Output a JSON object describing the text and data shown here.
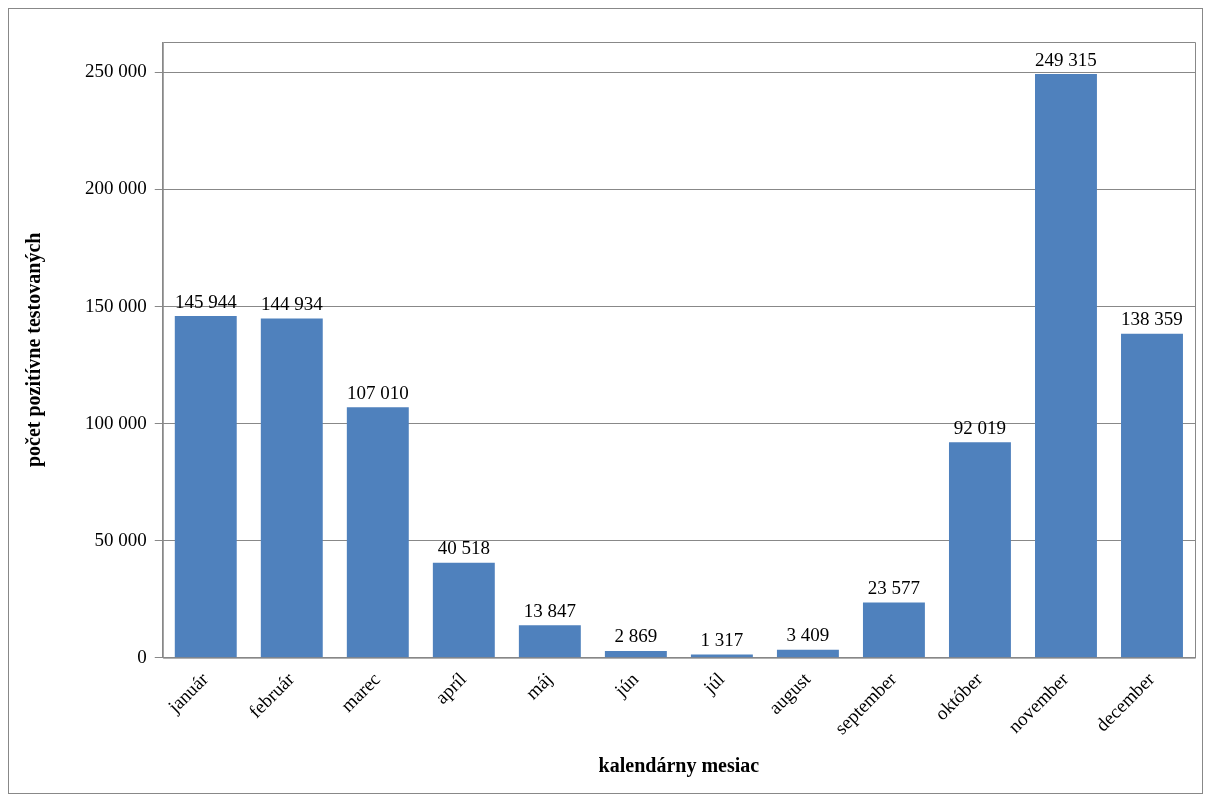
{
  "chart_data": {
    "type": "bar",
    "categories": [
      "január",
      "február",
      "marec",
      "apríl",
      "máj",
      "jún",
      "júl",
      "august",
      "september",
      "október",
      "november",
      "december"
    ],
    "values": [
      145944,
      144934,
      107010,
      40518,
      13847,
      2869,
      1317,
      3409,
      23577,
      92019,
      249315,
      138359
    ],
    "value_labels": [
      "145 944",
      "144 934",
      "107 010",
      "40 518",
      "13 847",
      "2 869",
      "1 317",
      "3 409",
      "23 577",
      "92 019",
      "249 315",
      "138 359"
    ],
    "color": "#4f81bd",
    "xlabel": "kalendárny mesiac",
    "ylabel": "počet pozitívne testovaných",
    "ylim": [
      0,
      263000
    ],
    "yticks": [
      {
        "value": 0,
        "label": "0"
      },
      {
        "value": 50000,
        "label": "50 000"
      },
      {
        "value": 100000,
        "label": "100 000"
      },
      {
        "value": 150000,
        "label": "150 000"
      },
      {
        "value": 200000,
        "label": "200 000"
      },
      {
        "value": 250000,
        "label": "250 000"
      }
    ],
    "grid": "y",
    "legend": false
  }
}
